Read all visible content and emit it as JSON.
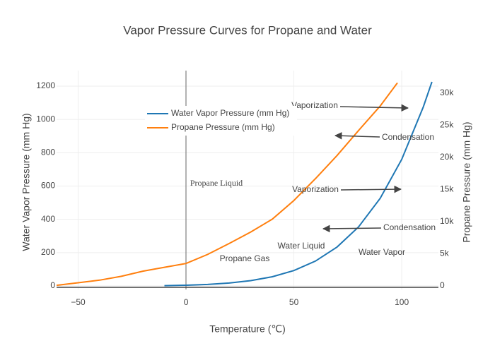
{
  "chart_data": {
    "type": "line",
    "title": "Vapor Pressure Curves for Propane and Water",
    "x_label": "Temperature (℃)",
    "y_label": "Water Vapor Pressure (mm Hg)",
    "y2_label": "Propane Pressure (mm Hg)",
    "xlim": [
      -60,
      117
    ],
    "xticks": [
      {
        "value": -50,
        "label": "−50"
      },
      0,
      50,
      100
    ],
    "ylim": [
      -21,
      1293
    ],
    "yticks": [
      0,
      200,
      400,
      600,
      800,
      1000,
      1200
    ],
    "y2lim": [
      -549,
      33516
    ],
    "y2ticks": [
      0,
      {
        "value": 5000,
        "label": "5k"
      },
      {
        "value": 10000,
        "label": "10k"
      },
      {
        "value": 15000,
        "label": "15k"
      },
      {
        "value": 20000,
        "label": "20k"
      },
      {
        "value": 25000,
        "label": "25k"
      },
      {
        "value": 30000,
        "label": "30k"
      }
    ],
    "grid": true,
    "legend": "top-center",
    "series": [
      {
        "name": "Water Vapor Pressure (mm Hg)",
        "color": "#1f77b4",
        "x": [
          -10,
          0,
          10,
          20,
          30,
          40,
          50,
          60,
          70,
          80,
          90,
          100,
          110,
          114
        ],
        "values": [
          2,
          4.6,
          9.2,
          17.5,
          31.8,
          55.3,
          92.5,
          149.4,
          233.7,
          355.1,
          525.8,
          760,
          1074.6,
          1225
        ]
      },
      {
        "name": "Propane Pressure (mm Hg)",
        "color": "#ff7f0e",
        "axis": "y2",
        "x": [
          -60,
          -50,
          -40,
          -30,
          -20,
          -10,
          0,
          10,
          20,
          30,
          40,
          50,
          60,
          70,
          80,
          90,
          98
        ],
        "values": [
          100,
          500,
          900,
          1500,
          2300,
          2900,
          3500,
          4900,
          6600,
          8400,
          10400,
          13300,
          16700,
          20300,
          24200,
          28000,
          31600
        ]
      }
    ],
    "annotations": [
      "Vaporization",
      "Condensation",
      "Vaporization",
      "Condensation",
      "Water Liquid",
      "Water Vapor",
      "Propane Gas",
      "Propane Liquid"
    ]
  }
}
